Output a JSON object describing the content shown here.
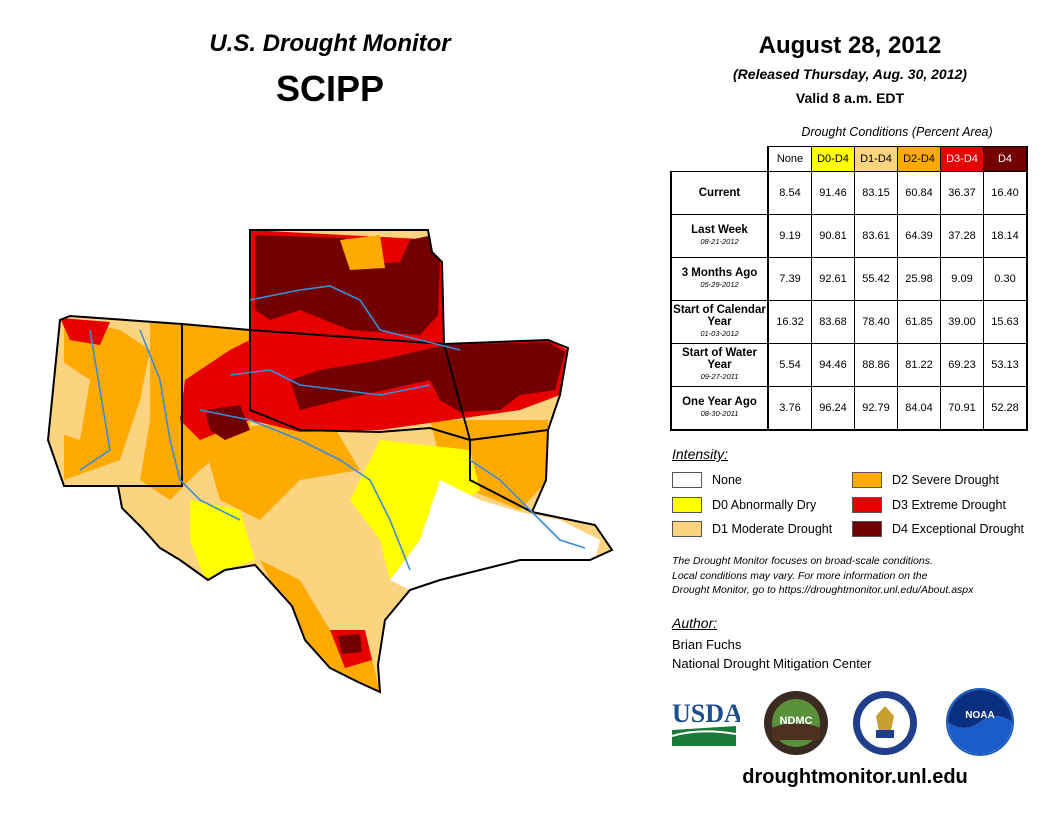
{
  "header": {
    "title": "U.S. Drought Monitor",
    "region": "SCIPP",
    "date": "August 28, 2012",
    "released": "(Released Thursday, Aug. 30, 2012)",
    "valid": "Valid 8 a.m. EDT"
  },
  "table": {
    "caption": "Drought Conditions (Percent Area)",
    "columns": [
      "None",
      "D0-D4",
      "D1-D4",
      "D2-D4",
      "D3-D4",
      "D4"
    ],
    "column_colors": [
      "#ffffff",
      "#ffff00",
      "#fcd37f",
      "#ffaa00",
      "#e60000",
      "#730000"
    ],
    "rows": [
      {
        "label": "Current",
        "date": "",
        "values": [
          "8.54",
          "91.46",
          "83.15",
          "60.84",
          "36.37",
          "16.40"
        ]
      },
      {
        "label": "Last Week",
        "date": "08-21-2012",
        "values": [
          "9.19",
          "90.81",
          "83.61",
          "64.39",
          "37.28",
          "18.14"
        ]
      },
      {
        "label": "3 Months Ago",
        "date": "05-29-2012",
        "values": [
          "7.39",
          "92.61",
          "55.42",
          "25.98",
          "9.09",
          "0.30"
        ]
      },
      {
        "label": "Start of Calendar Year",
        "date": "01-03-2012",
        "values": [
          "16.32",
          "83.68",
          "78.40",
          "61.85",
          "39.00",
          "15.63"
        ]
      },
      {
        "label": "Start of Water Year",
        "date": "09-27-2011",
        "values": [
          "5.54",
          "94.46",
          "88.86",
          "81.22",
          "69.23",
          "53.13"
        ]
      },
      {
        "label": "One Year Ago",
        "date": "08-30-2011",
        "values": [
          "3.76",
          "96.24",
          "92.79",
          "84.04",
          "70.91",
          "52.28"
        ]
      }
    ]
  },
  "legend": {
    "title": "Intensity:",
    "items": [
      {
        "label": "None",
        "color": "#ffffff"
      },
      {
        "label": "D0 Abnormally Dry",
        "color": "#ffff00"
      },
      {
        "label": "D1 Moderate Drought",
        "color": "#fcd37f"
      },
      {
        "label": "D2 Severe Drought",
        "color": "#ffaa00"
      },
      {
        "label": "D3 Extreme Drought",
        "color": "#e60000"
      },
      {
        "label": "D4 Exceptional Drought",
        "color": "#730000"
      }
    ]
  },
  "disclaimer": {
    "line1": "The Drought Monitor focuses on broad-scale conditions.",
    "line2": "Local conditions may vary. For more information on the",
    "line3": "Drought Monitor, go to https://droughtmonitor.unl.edu/About.aspx"
  },
  "author": {
    "title": "Author:",
    "name": "Brian Fuchs",
    "org": "National Drought Mitigation Center"
  },
  "logos": {
    "usda": "USDA",
    "ndmc": "NDMC",
    "noaa": "NOAA"
  },
  "website": "droughtmonitor.unl.edu",
  "map_colors": {
    "none": "#ffffff",
    "d0": "#ffff00",
    "d1": "#fcd37f",
    "d2": "#ffaa00",
    "d3": "#e60000",
    "d4": "#730000",
    "river": "#3c8cd8"
  }
}
